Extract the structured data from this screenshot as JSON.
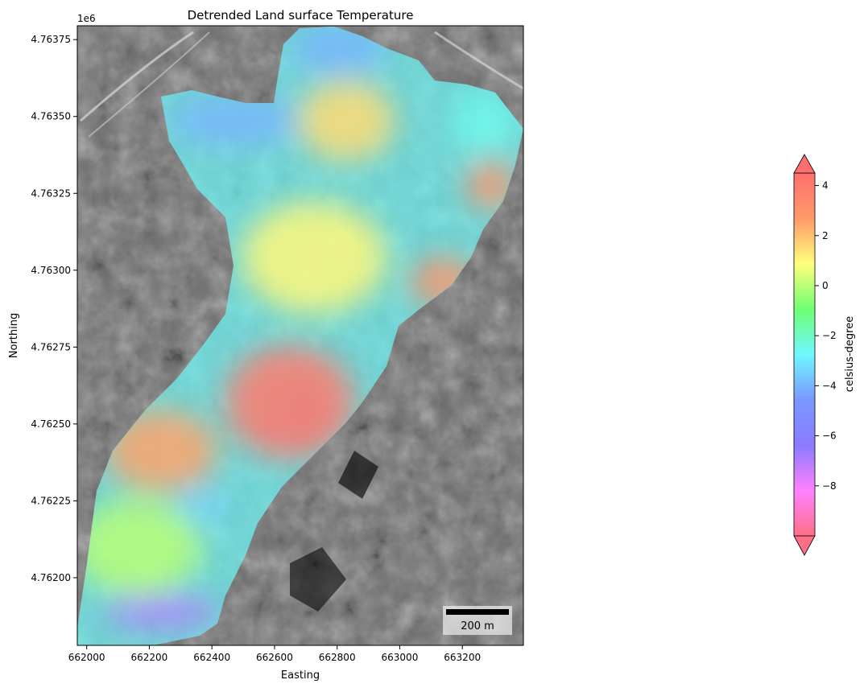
{
  "chart_data": {
    "type": "heatmap",
    "title": "Detrended Land surface Temperature",
    "xlabel": "Easting",
    "ylabel": "Northing",
    "offset_label": "1e6",
    "xlim": [
      661970,
      663395
    ],
    "ylim": [
      4.76178,
      4.763795
    ],
    "x_ticks": [
      662000,
      662200,
      662400,
      662600,
      662800,
      663000,
      663200
    ],
    "x_tick_labels": [
      "662000",
      "662200",
      "662400",
      "662600",
      "662800",
      "663000",
      "663200"
    ],
    "y_ticks": [
      4.762,
      4.76225,
      4.7625,
      4.76275,
      4.763,
      4.76325,
      4.7635,
      4.76375
    ],
    "y_tick_labels": [
      "4.76200",
      "4.76225",
      "4.76250",
      "4.76275",
      "4.76300",
      "4.76325",
      "4.76350",
      "4.76375"
    ],
    "colorbar": {
      "label": "celsius-degree",
      "range": [
        -10,
        4.5
      ],
      "ticks": [
        4,
        2,
        0,
        -2,
        -4,
        -6,
        -8
      ],
      "tick_labels": [
        "4",
        "2",
        "0",
        "−2",
        "−4",
        "−6",
        "−8"
      ],
      "extend": "both"
    },
    "scalebar": {
      "label": "200 m",
      "length_m": 200
    },
    "regions": [
      {
        "name": "north-lobe",
        "level": "cold",
        "value": -4
      },
      {
        "name": "north-center",
        "level": "mild",
        "value": 1.5
      },
      {
        "name": "east-edge",
        "level": "warm",
        "value": 3
      },
      {
        "name": "central-south",
        "level": "warm",
        "value": 4
      },
      {
        "name": "south-west",
        "level": "mild",
        "value": 0
      },
      {
        "name": "south-tip",
        "level": "very-cold",
        "value": -7
      }
    ]
  },
  "colors": {
    "background_image": "#6e6e6e",
    "cb_stops": [
      "#ff6f87",
      "#ff82ff",
      "#8a7bff",
      "#7b97ff",
      "#6ff8ff",
      "#6fff74",
      "#ffff7c",
      "#ff9a6a",
      "#ff6f6f"
    ]
  }
}
